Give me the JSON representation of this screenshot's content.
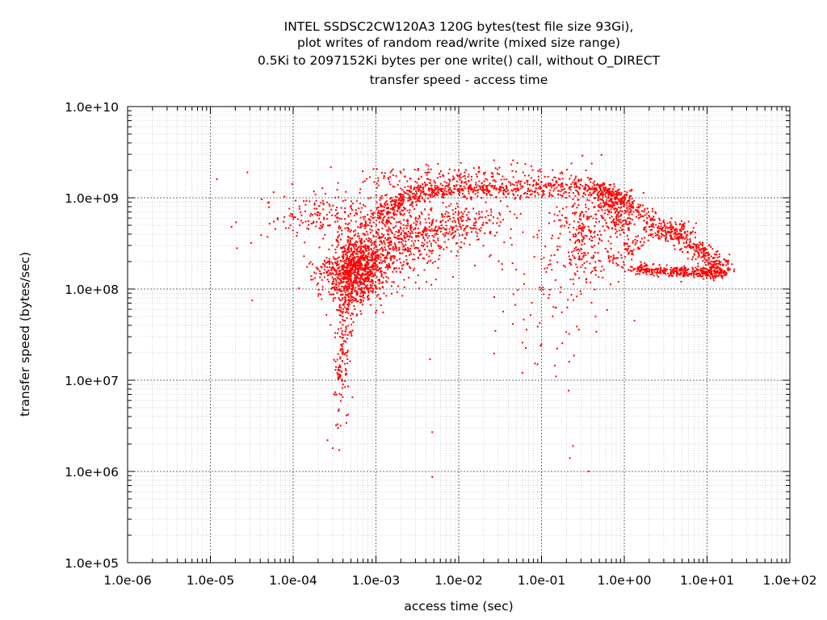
{
  "chart_data": {
    "type": "scatter",
    "title_lines": [
      "INTEL SSDSC2CW120A3 120G bytes(test file size 93Gi),",
      "plot writes of random read/write (mixed size range)",
      "0.5Ki to 2097152Ki bytes per one write() call, without O_DIRECT",
      "transfer speed - access time"
    ],
    "xlabel": "access time (sec)",
    "ylabel": "transfer speed (bytes/sec)",
    "x_scale": "log",
    "y_scale": "log",
    "xlim": [
      1e-06,
      100
    ],
    "ylim": [
      100000,
      10000000000
    ],
    "x_ticks": [
      1e-06,
      1e-05,
      0.0001,
      0.001,
      0.01,
      0.1,
      1,
      10,
      100
    ],
    "x_tick_labels": [
      "1.0e-06",
      "1.0e-05",
      "1.0e-04",
      "1.0e-03",
      "1.0e-02",
      "1.0e-01",
      "1.0e+00",
      "1.0e+01",
      "1.0e+02"
    ],
    "y_ticks": [
      100000,
      1000000,
      10000000,
      100000000,
      1000000000,
      10000000000
    ],
    "y_tick_labels": [
      "1.0e+05",
      "1.0e+06",
      "1.0e+07",
      "1.0e+08",
      "1.0e+09",
      "1.0e+10"
    ],
    "grid": true,
    "color": "#ff0000",
    "points": [
      [
        1.2e-05,
        1600000000
      ],
      [
        2.8e-05,
        1900000000
      ],
      [
        5.8e-05,
        1150000000
      ],
      [
        2.1e-05,
        280000000
      ],
      [
        3.1e-05,
        320000000
      ],
      [
        4.1e-05,
        390000000
      ],
      [
        6.5e-05,
        600000000
      ],
      [
        9e-05,
        760000000
      ],
      [
        0.00014,
        710000000
      ],
      [
        3.2e-05,
        75000000
      ],
      [
        1.8e-05,
        480000000
      ],
      [
        0.00012,
        500000000
      ],
      [
        0.00026,
        2200000
      ],
      [
        0.0003,
        1800000
      ],
      [
        0.00033,
        3200000
      ],
      [
        0.0004,
        9000000
      ],
      [
        0.00046,
        4200000
      ],
      [
        0.00052,
        6500000
      ],
      [
        0.0048,
        2700000
      ],
      [
        0.0045,
        17000000
      ],
      [
        0.0048,
        870000
      ],
      [
        0.15,
        11000000
      ],
      [
        0.22,
        1400000
      ],
      [
        0.24,
        1900000
      ],
      [
        0.37,
        1000000
      ],
      [
        0.46,
        34000000
      ],
      [
        0.45,
        50000000
      ],
      [
        0.62,
        59000000
      ],
      [
        0.85,
        120000000
      ],
      [
        0.0067,
        380000000
      ],
      [
        0.019,
        700000000
      ],
      [
        0.025,
        1700000000
      ],
      [
        0.06,
        1900000000
      ],
      [
        0.12,
        1700000000
      ],
      [
        0.3,
        1550000000
      ],
      [
        0.0015,
        1900000000
      ],
      [
        0.0032,
        2000000000
      ],
      [
        0.01,
        2000000000
      ],
      [
        14,
        150000000
      ],
      [
        12,
        180000000
      ],
      [
        9,
        230000000
      ],
      [
        4,
        300000000
      ],
      [
        2,
        480000000
      ],
      [
        1.2,
        700000000
      ],
      [
        3,
        160000000
      ],
      [
        6,
        145000000
      ]
    ],
    "series": [
      {
        "kind": "spine",
        "count": 700,
        "spread_x": 0.22,
        "spread_y": 0.1,
        "path": [
          [
            0.00035,
            120000000
          ],
          [
            0.0005,
            170000000
          ],
          [
            0.0009,
            260000000
          ],
          [
            0.002,
            360000000
          ],
          [
            0.005,
            460000000
          ],
          [
            0.012,
            550000000
          ],
          [
            0.018,
            560000000
          ]
        ]
      },
      {
        "kind": "spine",
        "count": 950,
        "spread_x": 0.12,
        "spread_y": 0.05,
        "path": [
          [
            0.0011,
            560000000
          ],
          [
            0.0016,
            820000000
          ],
          [
            0.003,
            1100000000
          ],
          [
            0.006,
            1200000000
          ],
          [
            0.02,
            1250000000
          ],
          [
            0.08,
            1300000000
          ],
          [
            0.25,
            1280000000
          ],
          [
            0.5,
            1220000000
          ],
          [
            0.7,
            1050000000
          ],
          [
            0.8,
            720000000
          ],
          [
            0.9,
            430000000
          ]
        ]
      },
      {
        "kind": "spine",
        "count": 420,
        "spread_x": 0.08,
        "spread_y": 0.04,
        "path": [
          [
            0.7,
            1120000000
          ],
          [
            1.2,
            800000000
          ],
          [
            2,
            560000000
          ],
          [
            3.5,
            420000000
          ],
          [
            5.5,
            330000000
          ],
          [
            8.5,
            260000000
          ],
          [
            12,
            200000000
          ],
          [
            15,
            155000000
          ]
        ]
      },
      {
        "kind": "spine",
        "count": 360,
        "spread_x": 0.07,
        "spread_y": 0.03,
        "path": [
          [
            1.2,
            165000000
          ],
          [
            2,
            160000000
          ],
          [
            4,
            155000000
          ],
          [
            7,
            152000000
          ],
          [
            11,
            150000000
          ],
          [
            15,
            152000000
          ]
        ]
      },
      {
        "kind": "spine",
        "count": 160,
        "spread_x": 0.08,
        "spread_y": 0.05,
        "path": [
          [
            0.7,
            210000000
          ],
          [
            1.0,
            250000000
          ],
          [
            1.5,
            330000000
          ],
          [
            2.5,
            420000000
          ],
          [
            4,
            480000000
          ],
          [
            6,
            420000000
          ]
        ]
      },
      {
        "kind": "spine",
        "count": 240,
        "spread_x": 0.04,
        "spread_y": 0.28,
        "path": [
          [
            0.00048,
            260000000
          ],
          [
            0.00047,
            120000000
          ],
          [
            0.00044,
            50000000
          ],
          [
            0.0004,
            20000000
          ],
          [
            0.00036,
            9000000
          ]
        ]
      },
      {
        "kind": "cloud",
        "count": 700,
        "center": [
          0.0006,
          150000000
        ],
        "spread_x": 0.16,
        "spread_y": 0.2
      },
      {
        "kind": "cloud",
        "count": 260,
        "center": [
          0.0018,
          280000000
        ],
        "spread_x": 0.3,
        "spread_y": 0.25
      },
      {
        "kind": "cloud",
        "count": 170,
        "center": [
          0.00022,
          650000000
        ],
        "spread_x": 0.35,
        "spread_y": 0.12
      },
      {
        "kind": "cloud",
        "count": 230,
        "center": [
          0.3,
          380000000
        ],
        "spread_x": 0.16,
        "spread_y": 0.28
      },
      {
        "kind": "cloud",
        "count": 100,
        "center": [
          0.12,
          120000000
        ],
        "spread_x": 0.35,
        "spread_y": 0.5
      },
      {
        "kind": "cloud",
        "count": 150,
        "center": [
          0.004,
          1500000000
        ],
        "spread_x": 0.45,
        "spread_y": 0.09
      },
      {
        "kind": "cloud",
        "count": 130,
        "center": [
          0.04,
          1500000000
        ],
        "spread_x": 0.55,
        "spread_y": 0.1
      }
    ]
  }
}
